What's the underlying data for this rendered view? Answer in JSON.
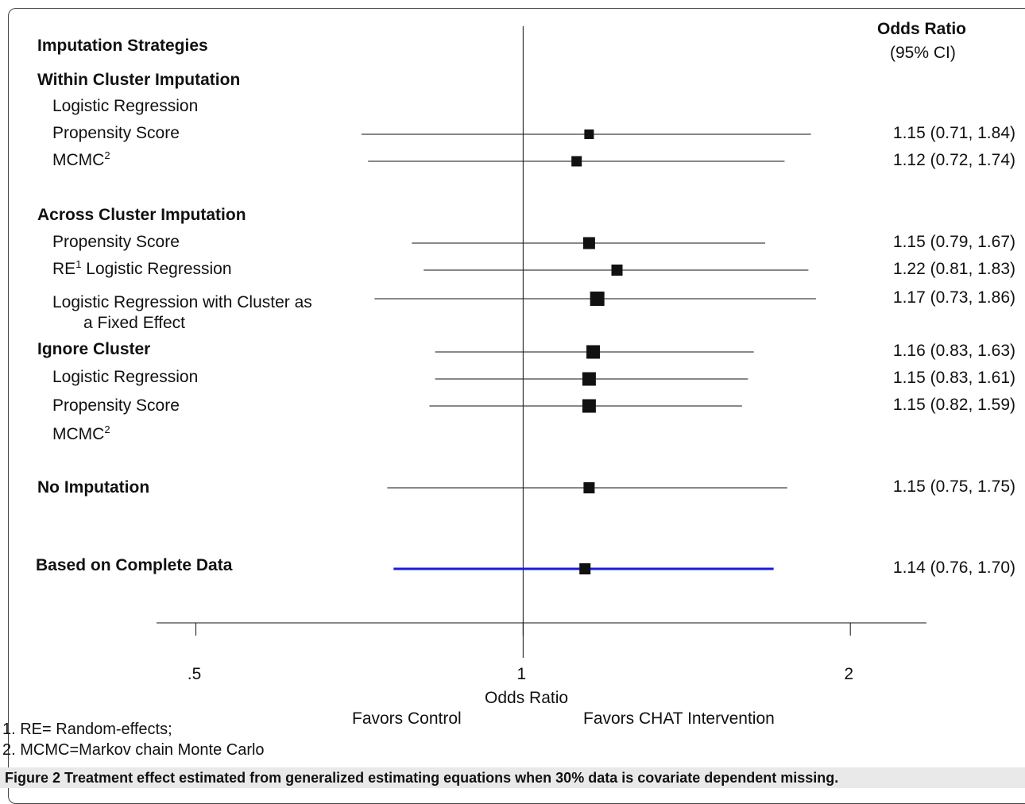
{
  "chart_data": {
    "type": "forest",
    "header_left": "Imputation Strategies",
    "header_right": "Odds Ratio",
    "header_right_sub": "(95% CI)",
    "xlabel": "Odds Ratio",
    "x_scale": "log",
    "xlim": [
      0.46,
      2.35
    ],
    "ticks": [
      {
        "value": 0.5,
        "label": ".5"
      },
      {
        "value": 1,
        "label": "1"
      },
      {
        "value": 2,
        "label": "2"
      }
    ],
    "reference_line": 1,
    "favors_left": "Favors Control",
    "favors_right": "Favors CHAT Intervention",
    "rows": [
      {
        "label": "Within Cluster Imputation",
        "bold": true
      },
      {
        "label": "Logistic Regression"
      },
      {
        "label": "Propensity Score",
        "or": 1.15,
        "lo": 0.71,
        "hi": 1.84,
        "text": "1.15 (0.71, 1.84)"
      },
      {
        "label": "MCMC",
        "sup": "2",
        "or": 1.12,
        "lo": 0.72,
        "hi": 1.74,
        "text": "1.12 (0.72, 1.74)"
      },
      {
        "label": "Across Cluster Imputation",
        "bold": true
      },
      {
        "label": "Logistic Regression",
        "pre": "RE",
        "sup": "1",
        "or": 1.22,
        "lo": 0.81,
        "hi": 1.83,
        "text": "1.22 (0.81, 1.83)"
      },
      {
        "label": "Propensity Score",
        "or": 1.15,
        "lo": 0.79,
        "hi": 1.67,
        "text": "1.15 (0.79, 1.67)"
      },
      {
        "label": "Logistic Regression with Cluster as",
        "label2": "a Fixed Effect",
        "or": 1.17,
        "lo": 0.73,
        "hi": 1.86,
        "text": "1.17 (0.73, 1.86)"
      },
      {
        "label": "Ignore Cluster",
        "bold": true,
        "or": 1.16,
        "lo": 0.83,
        "hi": 1.63,
        "text": "1.16 (0.83, 1.63)"
      },
      {
        "label": "Logistic Regression",
        "or": 1.15,
        "lo": 0.83,
        "hi": 1.61,
        "text": "1.15 (0.83, 1.61)"
      },
      {
        "label": "Propensity Score",
        "or": 1.15,
        "lo": 0.82,
        "hi": 1.59,
        "text": "1.15 (0.82, 1.59)"
      },
      {
        "label": "MCMC",
        "sup": "2"
      },
      {
        "label": "No Imputation",
        "bold": true,
        "or": 1.15,
        "lo": 0.75,
        "hi": 1.75,
        "text": "1.15 (0.75, 1.75)"
      },
      {
        "label": "Based on Complete Data",
        "bold": true,
        "or": 1.14,
        "lo": 0.76,
        "hi": 1.7,
        "text": "1.14 (0.76, 1.70)",
        "color": "#1a1adf"
      }
    ],
    "footnotes": [
      "1. RE= Random-effects;",
      "2. MCMC=Markov chain Monte Carlo"
    ]
  },
  "caption": {
    "label": "Figure 2",
    "text": "Treatment effect estimated from generalized estimating equations when 30% data is covariate dependent missing."
  }
}
